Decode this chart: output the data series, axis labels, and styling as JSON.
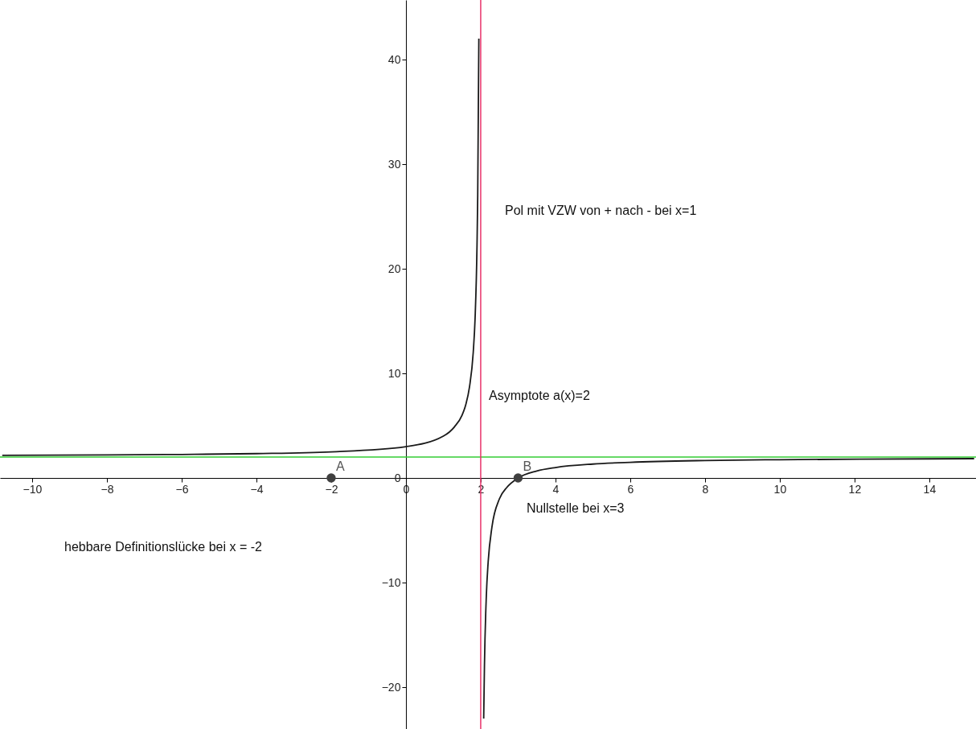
{
  "chart_data": {
    "type": "line",
    "xlim": [
      -10.86,
      15.25
    ],
    "ylim": [
      -24,
      45.7
    ],
    "xticks": [
      -10,
      -8,
      -6,
      -4,
      -2,
      0,
      2,
      4,
      6,
      8,
      10,
      12,
      14
    ],
    "yticks": [
      -20,
      -10,
      0,
      10,
      20,
      30,
      40
    ],
    "series": [
      {
        "color": "#1a1a1a",
        "x": [
          -10.8,
          -8,
          -6,
          -4,
          -2,
          0,
          1,
          1.3,
          1.5,
          1.6,
          1.7,
          1.8,
          1.85,
          1.9,
          1.92,
          1.95
        ],
        "values": [
          2.16,
          2.2,
          2.25,
          2.33,
          2.5,
          3,
          4,
          4.9,
          6,
          7,
          8.7,
          12,
          15.3,
          22,
          27,
          42
        ],
        "marker": "none",
        "line_style": "solid"
      },
      {
        "color": "#1a1a1a",
        "x": [
          2.08,
          2.1,
          2.15,
          2.2,
          2.3,
          2.5,
          2.7,
          3,
          3.5,
          4,
          5,
          6,
          8,
          10,
          14,
          15.2
        ],
        "values": [
          -23,
          -18,
          -11.3,
          -8,
          -4.7,
          -2,
          -0.9,
          0,
          0.67,
          1,
          1.33,
          1.5,
          1.67,
          1.75,
          1.83,
          1.85
        ],
        "marker": "none",
        "line_style": "solid"
      },
      {
        "type": "scatter",
        "color": "#404040",
        "x": [
          -2,
          3
        ],
        "values": [
          0,
          0
        ],
        "value_labels": [
          "A",
          "B"
        ],
        "marker": "circle"
      }
    ],
    "ref_lines": [
      {
        "axis": "y",
        "value": 2,
        "color": "#33cc33"
      },
      {
        "axis": "x",
        "value": 2,
        "color": "#e8336b"
      }
    ],
    "annotations": [
      "Pol mit VZW von + nach - bei x=1",
      "Asymptote a(x)=2",
      "Nullstelle bei x=3",
      "hebbare Definitionslücke bei x = -2"
    ]
  }
}
